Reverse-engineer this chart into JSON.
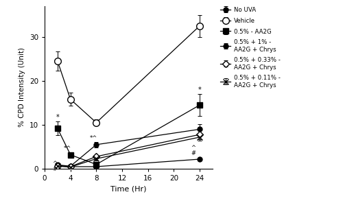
{
  "time": [
    2,
    4,
    8,
    24
  ],
  "series_order": [
    "no_uva",
    "vehicle",
    "aa2g",
    "aa2g_chrys1",
    "aa2g_chrys033",
    "aa2g_chrys011"
  ],
  "series": {
    "no_uva": {
      "y": [
        0.8,
        0.5,
        0.5,
        2.2
      ],
      "yerr": [
        0.2,
        0.15,
        0.15,
        0.3
      ],
      "label": "No UVA",
      "marker": "o",
      "mfc": "black",
      "mec": "black",
      "ms": 5
    },
    "vehicle": {
      "y": [
        24.5,
        15.8,
        10.5,
        32.5
      ],
      "yerr": [
        2.2,
        1.5,
        0.7,
        2.5
      ],
      "label": "Vehicle",
      "marker": "o",
      "mfc": "white",
      "mec": "black",
      "ms": 7
    },
    "aa2g": {
      "y": [
        9.2,
        3.2,
        1.0,
        14.5
      ],
      "yerr": [
        1.5,
        0.5,
        0.3,
        2.5
      ],
      "label": "0.5% - AA2G",
      "marker": "s",
      "mfc": "black",
      "mec": "black",
      "ms": 6
    },
    "aa2g_chrys1": {
      "y": [
        0.9,
        0.6,
        5.5,
        9.0
      ],
      "yerr": [
        0.2,
        0.15,
        0.6,
        1.2
      ],
      "label": "0.5% + 1% -\nAA2G + Chrys",
      "marker": "o",
      "mfc": "black",
      "mec": "black",
      "ms": 5
    },
    "aa2g_chrys033": {
      "y": [
        0.7,
        0.5,
        2.8,
        7.8
      ],
      "yerr": [
        0.2,
        0.15,
        0.4,
        1.0
      ],
      "label": "0.5% + 0.33% -\nAA2G + Chrys",
      "marker": "D",
      "mfc": "white",
      "mec": "black",
      "ms": 5
    },
    "aa2g_chrys011": {
      "y": [
        0.6,
        0.4,
        2.3,
        7.2
      ],
      "yerr": [
        0.2,
        0.15,
        0.4,
        0.8
      ],
      "label": "0.5% + 0.11% -\nAA2G + Chrys",
      "marker": "x",
      "mfc": "black",
      "mec": "black",
      "ms": 6
    }
  },
  "xlabel": "Time (Hr)",
  "ylabel": "% CPD Intensity (Unit)",
  "xlim": [
    0,
    26
  ],
  "ylim": [
    0,
    37
  ],
  "yticks": [
    0,
    10,
    20,
    30
  ],
  "xticks": [
    0,
    4,
    8,
    12,
    16,
    20,
    24
  ]
}
